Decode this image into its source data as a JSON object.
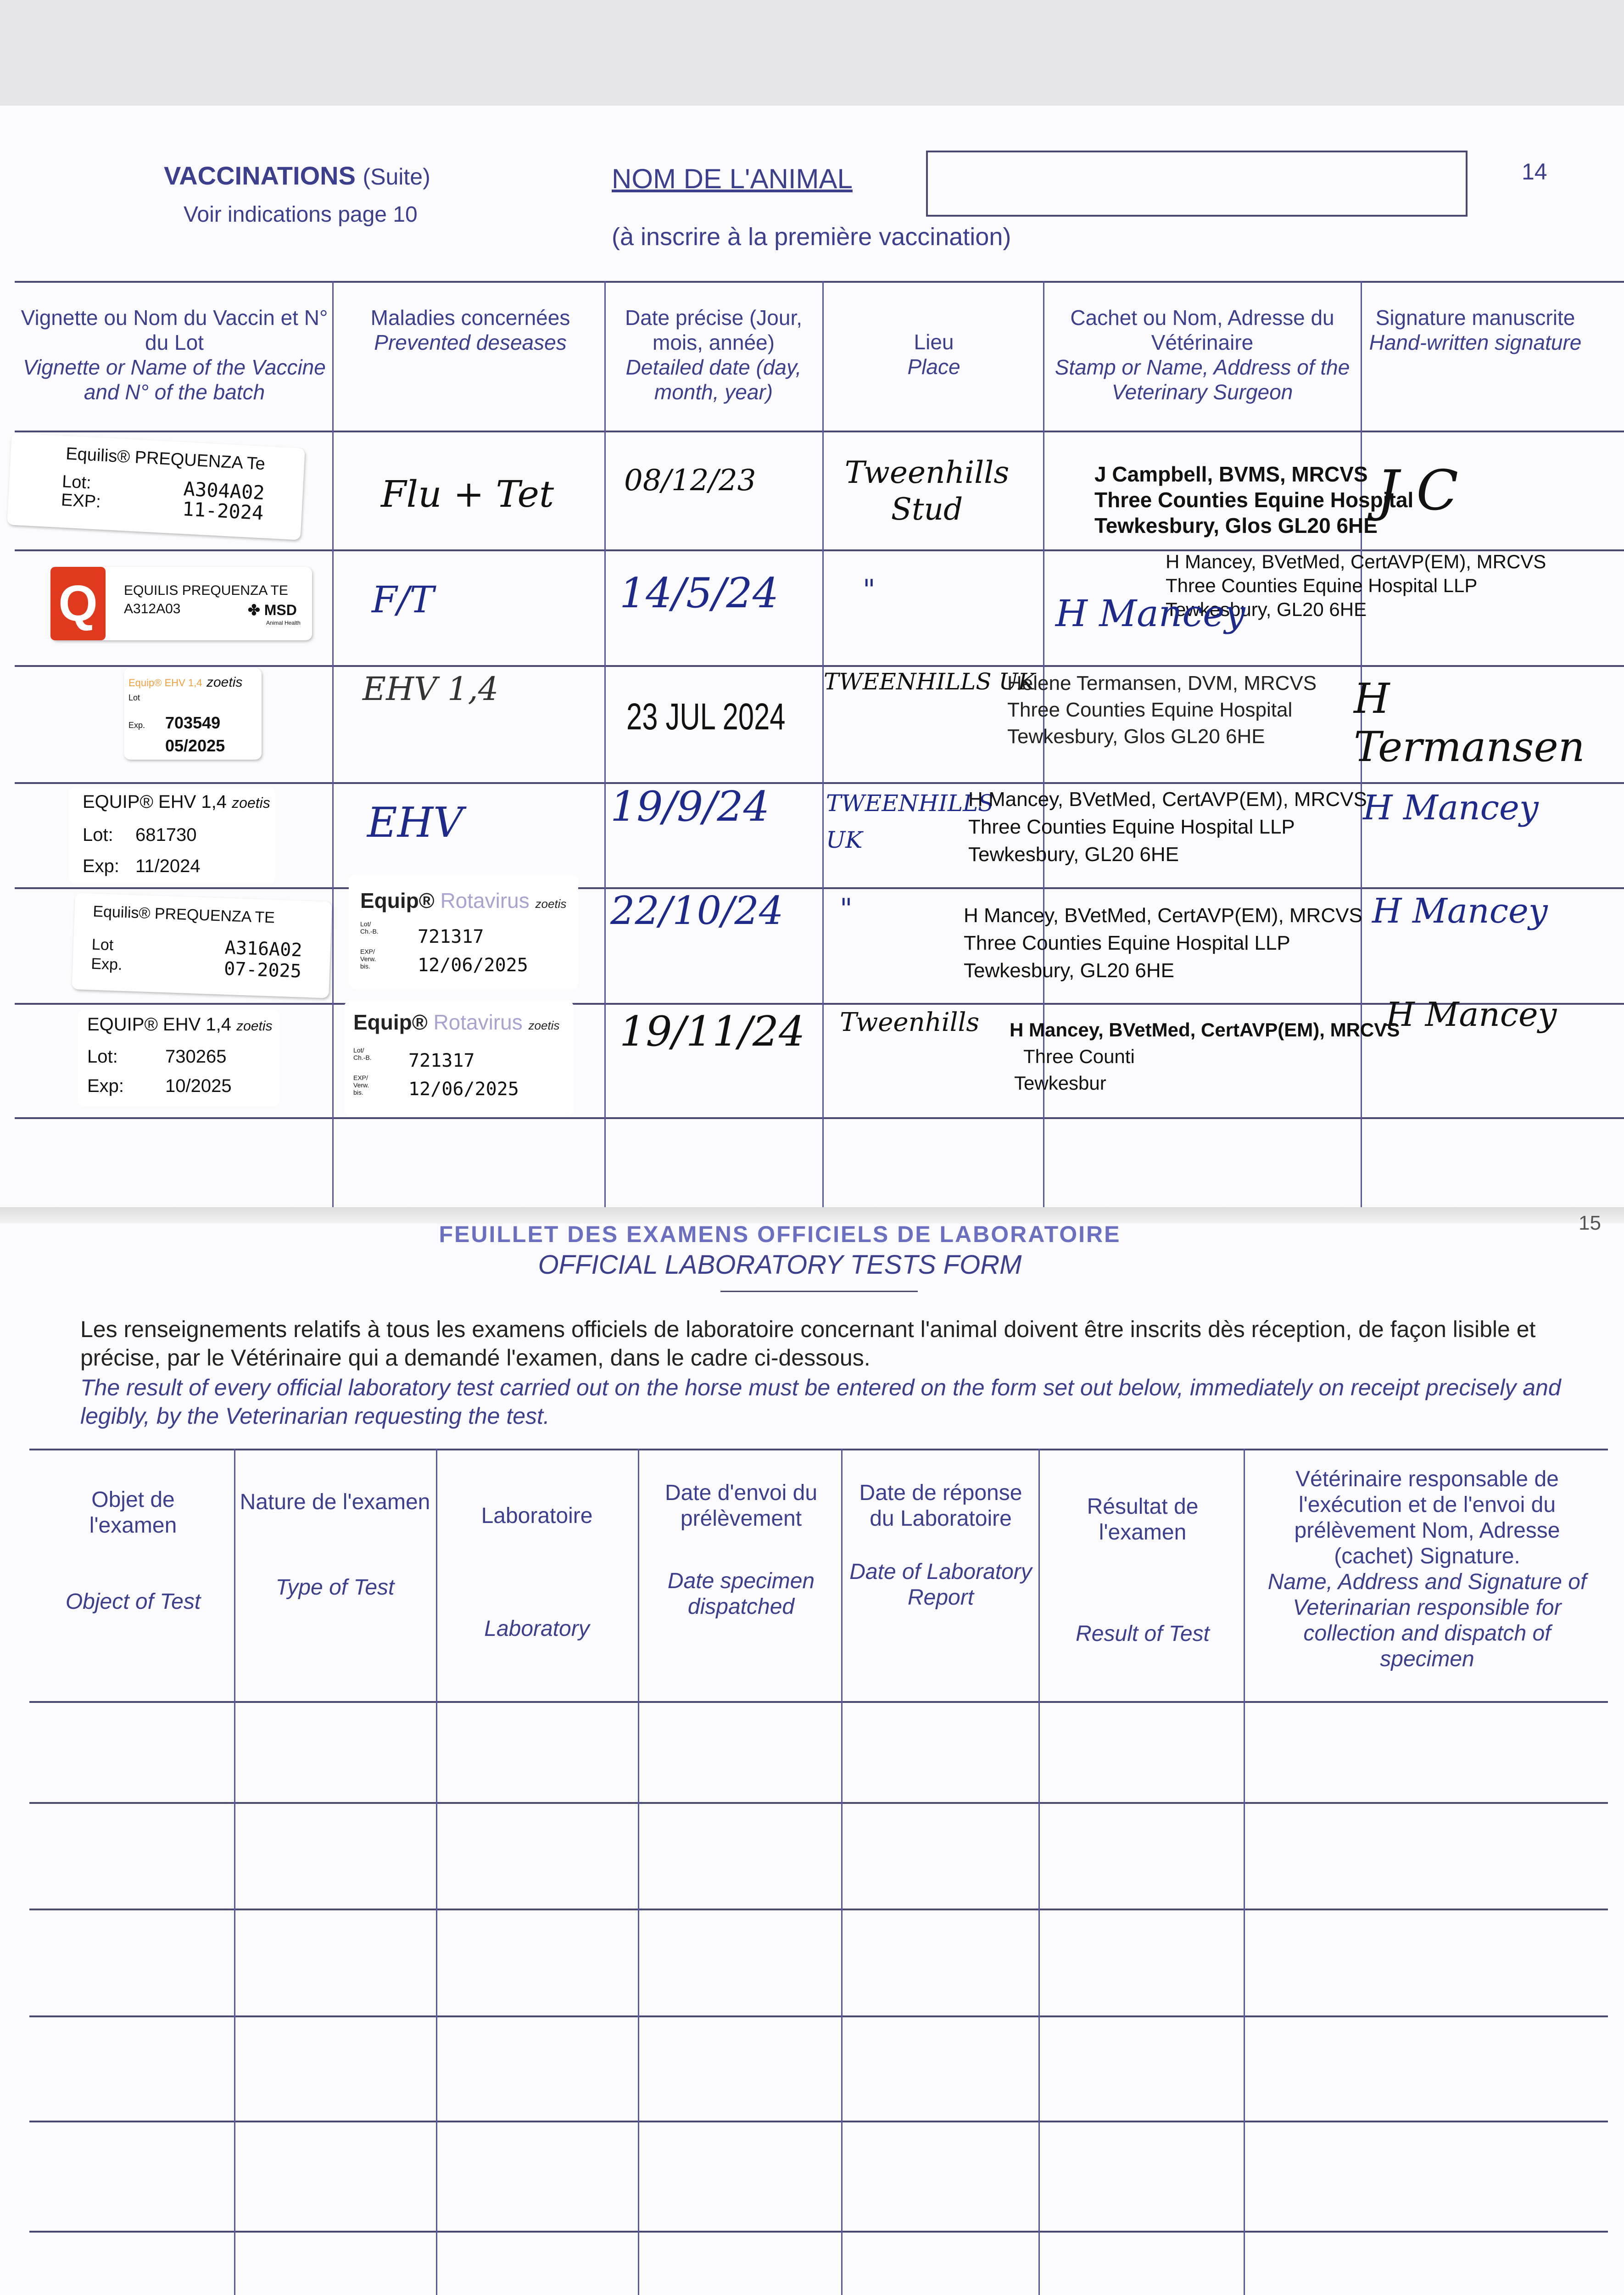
{
  "page_number_left": "14",
  "page_number_right": "15",
  "vaccinations": {
    "title": "VACCINATIONS",
    "title_suffix": "(Suite)",
    "subtitle": "Voir indications page 10",
    "animal_name_label": "NOM DE L'ANIMAL",
    "animal_name_value": "",
    "animal_name_note": "(à inscrire à la première vaccination)",
    "columns": [
      {
        "fr": "Vignette ou Nom du Vaccin et N° du Lot",
        "en": "Vignette or Name of the Vaccine and N° of the batch"
      },
      {
        "fr": "Maladies concernées",
        "en": "Prevented deseases"
      },
      {
        "fr": "Date précise (Jour, mois, année)",
        "en": "Detailed date (day, month, year)"
      },
      {
        "fr": "Lieu",
        "en": "Place"
      },
      {
        "fr": "Cachet ou Nom, Adresse du Vétérinaire",
        "en": "Stamp or Name, Address of the Veterinary Surgeon"
      },
      {
        "fr": "Signature manuscrite",
        "en": "Hand-written signature"
      }
    ],
    "rows": [
      {
        "vaccine": {
          "brand": "Equilis® PREQUENZA Te",
          "lot_label": "Lot:",
          "lot": "A304A02",
          "exp_label": "EXP:",
          "exp": "11-2024"
        },
        "disease": "Flu + Tet",
        "date": "08/12/23",
        "place": "Tweenhills Stud",
        "stamp": [
          "J Campbell, BVMS, MRCVS",
          "Three Counties Equine Hospital",
          "Tewkesbury, Glos GL20 6HE"
        ],
        "signature": "J C"
      },
      {
        "vaccine": {
          "brand": "EQUILIS PREQUENZA TE",
          "lot": "A312A03",
          "maker": "MSD",
          "maker_sub": "Animal Health",
          "logo": "Q"
        },
        "disease": "F/T",
        "date": "14/5/24",
        "place": "\"",
        "stamp": [
          "H Mancey, BVetMed, CertAVP(EM), MRCVS",
          "Three Counties Equine Hospital LLP",
          "Tewkesbury, GL20 6HE"
        ],
        "signature": "H Mancey"
      },
      {
        "vaccine": {
          "brand": "Equip® EHV 1,4",
          "maker": "zoetis",
          "lot_label": "Lot",
          "exp_label": "Exp.",
          "lot": "703549",
          "exp": "05/2025"
        },
        "disease": "EHV 1,4",
        "date": "23 JUL 2024",
        "place": "TWEENHILLS UK",
        "stamp": [
          "Helene Termansen, DVM, MRCVS",
          "Three Counties Equine Hospital",
          "Tewkesbury, Glos GL20 6HE"
        ],
        "signature": "H Termansen"
      },
      {
        "vaccine": {
          "brand": "EQUIP® EHV 1,4",
          "maker": "zoetis",
          "lot_label": "Lot:",
          "lot": "681730",
          "exp_label": "Exp:",
          "exp": "11/2024"
        },
        "disease": "EHV",
        "date": "19/9/24",
        "place": "TWEENHILLS UK",
        "stamp": [
          "H Mancey, BVetMed, CertAVP(EM), MRCVS",
          "Three Counties Equine Hospital LLP",
          "Tewkesbury, GL20 6HE"
        ],
        "signature": "H Mancey"
      },
      {
        "vaccine": {
          "brand": "Equilis® PREQUENZA TE",
          "lot_label": "Lot",
          "lot": "A316A02",
          "exp_label": "Exp.",
          "exp": "07-2025"
        },
        "disease_sticker": {
          "brand": "Equip®",
          "product": "Rotavirus",
          "maker": "zoetis",
          "lot_label": "Lot/ Ch.-B.",
          "lot": "721317",
          "exp_label": "EXP/ Verw. bis.",
          "exp": "12/06/2025"
        },
        "date": "22/10/24",
        "place": "\"",
        "stamp": [
          "H Mancey, BVetMed, CertAVP(EM), MRCVS",
          "Three Counties Equine Hospital LLP",
          "Tewkesbury, GL20 6HE"
        ],
        "signature": "H Mancey"
      },
      {
        "vaccine": {
          "brand": "EQUIP® EHV 1,4",
          "maker": "zoetis",
          "lot_label": "Lot:",
          "lot": "730265",
          "exp_label": "Exp:",
          "exp": "10/2025"
        },
        "disease_sticker": {
          "brand": "Equip®",
          "product": "Rotavirus",
          "maker": "zoetis",
          "lot_label": "Lot/ Ch.-B.",
          "lot": "721317",
          "exp_label": "EXP/ Verw. bis.",
          "exp": "12/06/2025"
        },
        "date": "19/11/24",
        "place": "Tweenhills",
        "stamp": [
          "H Mancey, BVetMed, CertAVP(EM), MRCVS",
          "Three Counti",
          "Tewkesbur"
        ],
        "signature": "H Mancey"
      }
    ]
  },
  "lab": {
    "title_fr": "FEUILLET DES EXAMENS OFFICIELS DE LABORATOIRE",
    "title_en": "OFFICIAL LABORATORY TESTS FORM",
    "intro_fr": "Les renseignements relatifs à tous les examens officiels de laboratoire concernant l'animal doivent être inscrits dès réception, de façon lisible et précise, par le Vétérinaire qui a demandé l'examen, dans le cadre ci-dessous.",
    "intro_en": "The result of every official laboratory test carried out on the horse must be entered on the form set out below, immediately on receipt precisely and legibly, by the Veterinarian requesting the test.",
    "columns": [
      {
        "fr": "Objet de l'examen",
        "en": "Object of Test"
      },
      {
        "fr": "Nature de l'examen",
        "en": "Type of Test"
      },
      {
        "fr": "Laboratoire",
        "en": "Laboratory"
      },
      {
        "fr": "Date d'envoi du prélèvement",
        "en": "Date specimen dispatched"
      },
      {
        "fr": "Date de réponse du Laboratoire",
        "en": "Date of Laboratory Report"
      },
      {
        "fr": "Résultat de l'examen",
        "en": "Result of Test"
      },
      {
        "fr": "Vétérinaire responsable de l'exécution et de l'envoi du prélèvement Nom, Adresse (cachet) Signature.",
        "en": "Name, Address and Signature of Veterinarian responsible for collection and dispatch of specimen"
      }
    ]
  },
  "colors": {
    "ink": "#3c3f8c",
    "pen": "#1e2a8a",
    "red_logo": "#e03a1e",
    "rotavirus": "#a9a3d0",
    "zoetis_orange": "#f0a040"
  }
}
